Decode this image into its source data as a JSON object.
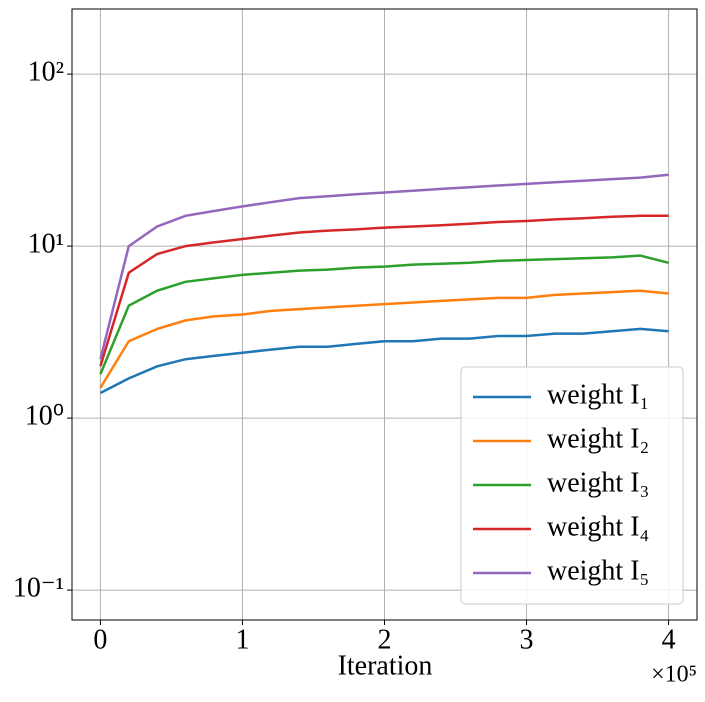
{
  "chart_data": {
    "type": "line",
    "x_label": "Iteration",
    "x_offset": "×10⁵",
    "x": [
      0,
      20000,
      40000,
      60000,
      80000,
      100000,
      120000,
      140000,
      160000,
      180000,
      200000,
      220000,
      240000,
      260000,
      280000,
      300000,
      320000,
      340000,
      360000,
      380000,
      400000
    ],
    "series": [
      {
        "name": "weight I₁",
        "color": "#1f77b4",
        "values": [
          1.4,
          1.7,
          2.0,
          2.2,
          2.3,
          2.4,
          2.5,
          2.6,
          2.6,
          2.7,
          2.8,
          2.8,
          2.9,
          2.9,
          3.0,
          3.0,
          3.1,
          3.1,
          3.2,
          3.3,
          3.2
        ]
      },
      {
        "name": "weight I₂",
        "color": "#ff7f0e",
        "values": [
          1.5,
          2.8,
          3.3,
          3.7,
          3.9,
          4.0,
          4.2,
          4.3,
          4.4,
          4.5,
          4.6,
          4.7,
          4.8,
          4.9,
          5.0,
          5.0,
          5.2,
          5.3,
          5.4,
          5.5,
          5.3
        ]
      },
      {
        "name": "weight I₃",
        "color": "#2ca02c",
        "values": [
          1.8,
          4.5,
          5.5,
          6.2,
          6.5,
          6.8,
          7.0,
          7.2,
          7.3,
          7.5,
          7.6,
          7.8,
          7.9,
          8.0,
          8.2,
          8.3,
          8.4,
          8.5,
          8.6,
          8.8,
          8.0
        ]
      },
      {
        "name": "weight I₄",
        "color": "#d62728",
        "values": [
          2.0,
          7.0,
          9.0,
          10.0,
          10.5,
          11.0,
          11.5,
          12.0,
          12.3,
          12.5,
          12.8,
          13.0,
          13.2,
          13.5,
          13.8,
          14.0,
          14.3,
          14.5,
          14.8,
          15.0,
          15.0
        ]
      },
      {
        "name": "weight I₅",
        "color": "#9467bd",
        "values": [
          2.2,
          10,
          13,
          15,
          16,
          17,
          18,
          19,
          19.5,
          20,
          20.5,
          21,
          21.5,
          22,
          22.5,
          23,
          23.5,
          24,
          24.5,
          25,
          26
        ]
      }
    ],
    "xlim": [
      -20000,
      420000
    ],
    "xticks": [
      0,
      {
        "value": 100000,
        "label": "1"
      },
      {
        "value": 200000,
        "label": "2"
      },
      {
        "value": 300000,
        "label": "3"
      },
      {
        "value": 400000,
        "label": "4"
      }
    ],
    "ylim": [
      0.067,
      239
    ],
    "yticks": [
      {
        "value": 0.1,
        "label": "10⁻¹"
      },
      {
        "value": 1,
        "label": "10⁰"
      },
      {
        "value": 10,
        "label": "10¹"
      },
      {
        "value": 100,
        "label": "10²"
      }
    ],
    "log_y": true,
    "grid": true,
    "legend": "lower right"
  }
}
